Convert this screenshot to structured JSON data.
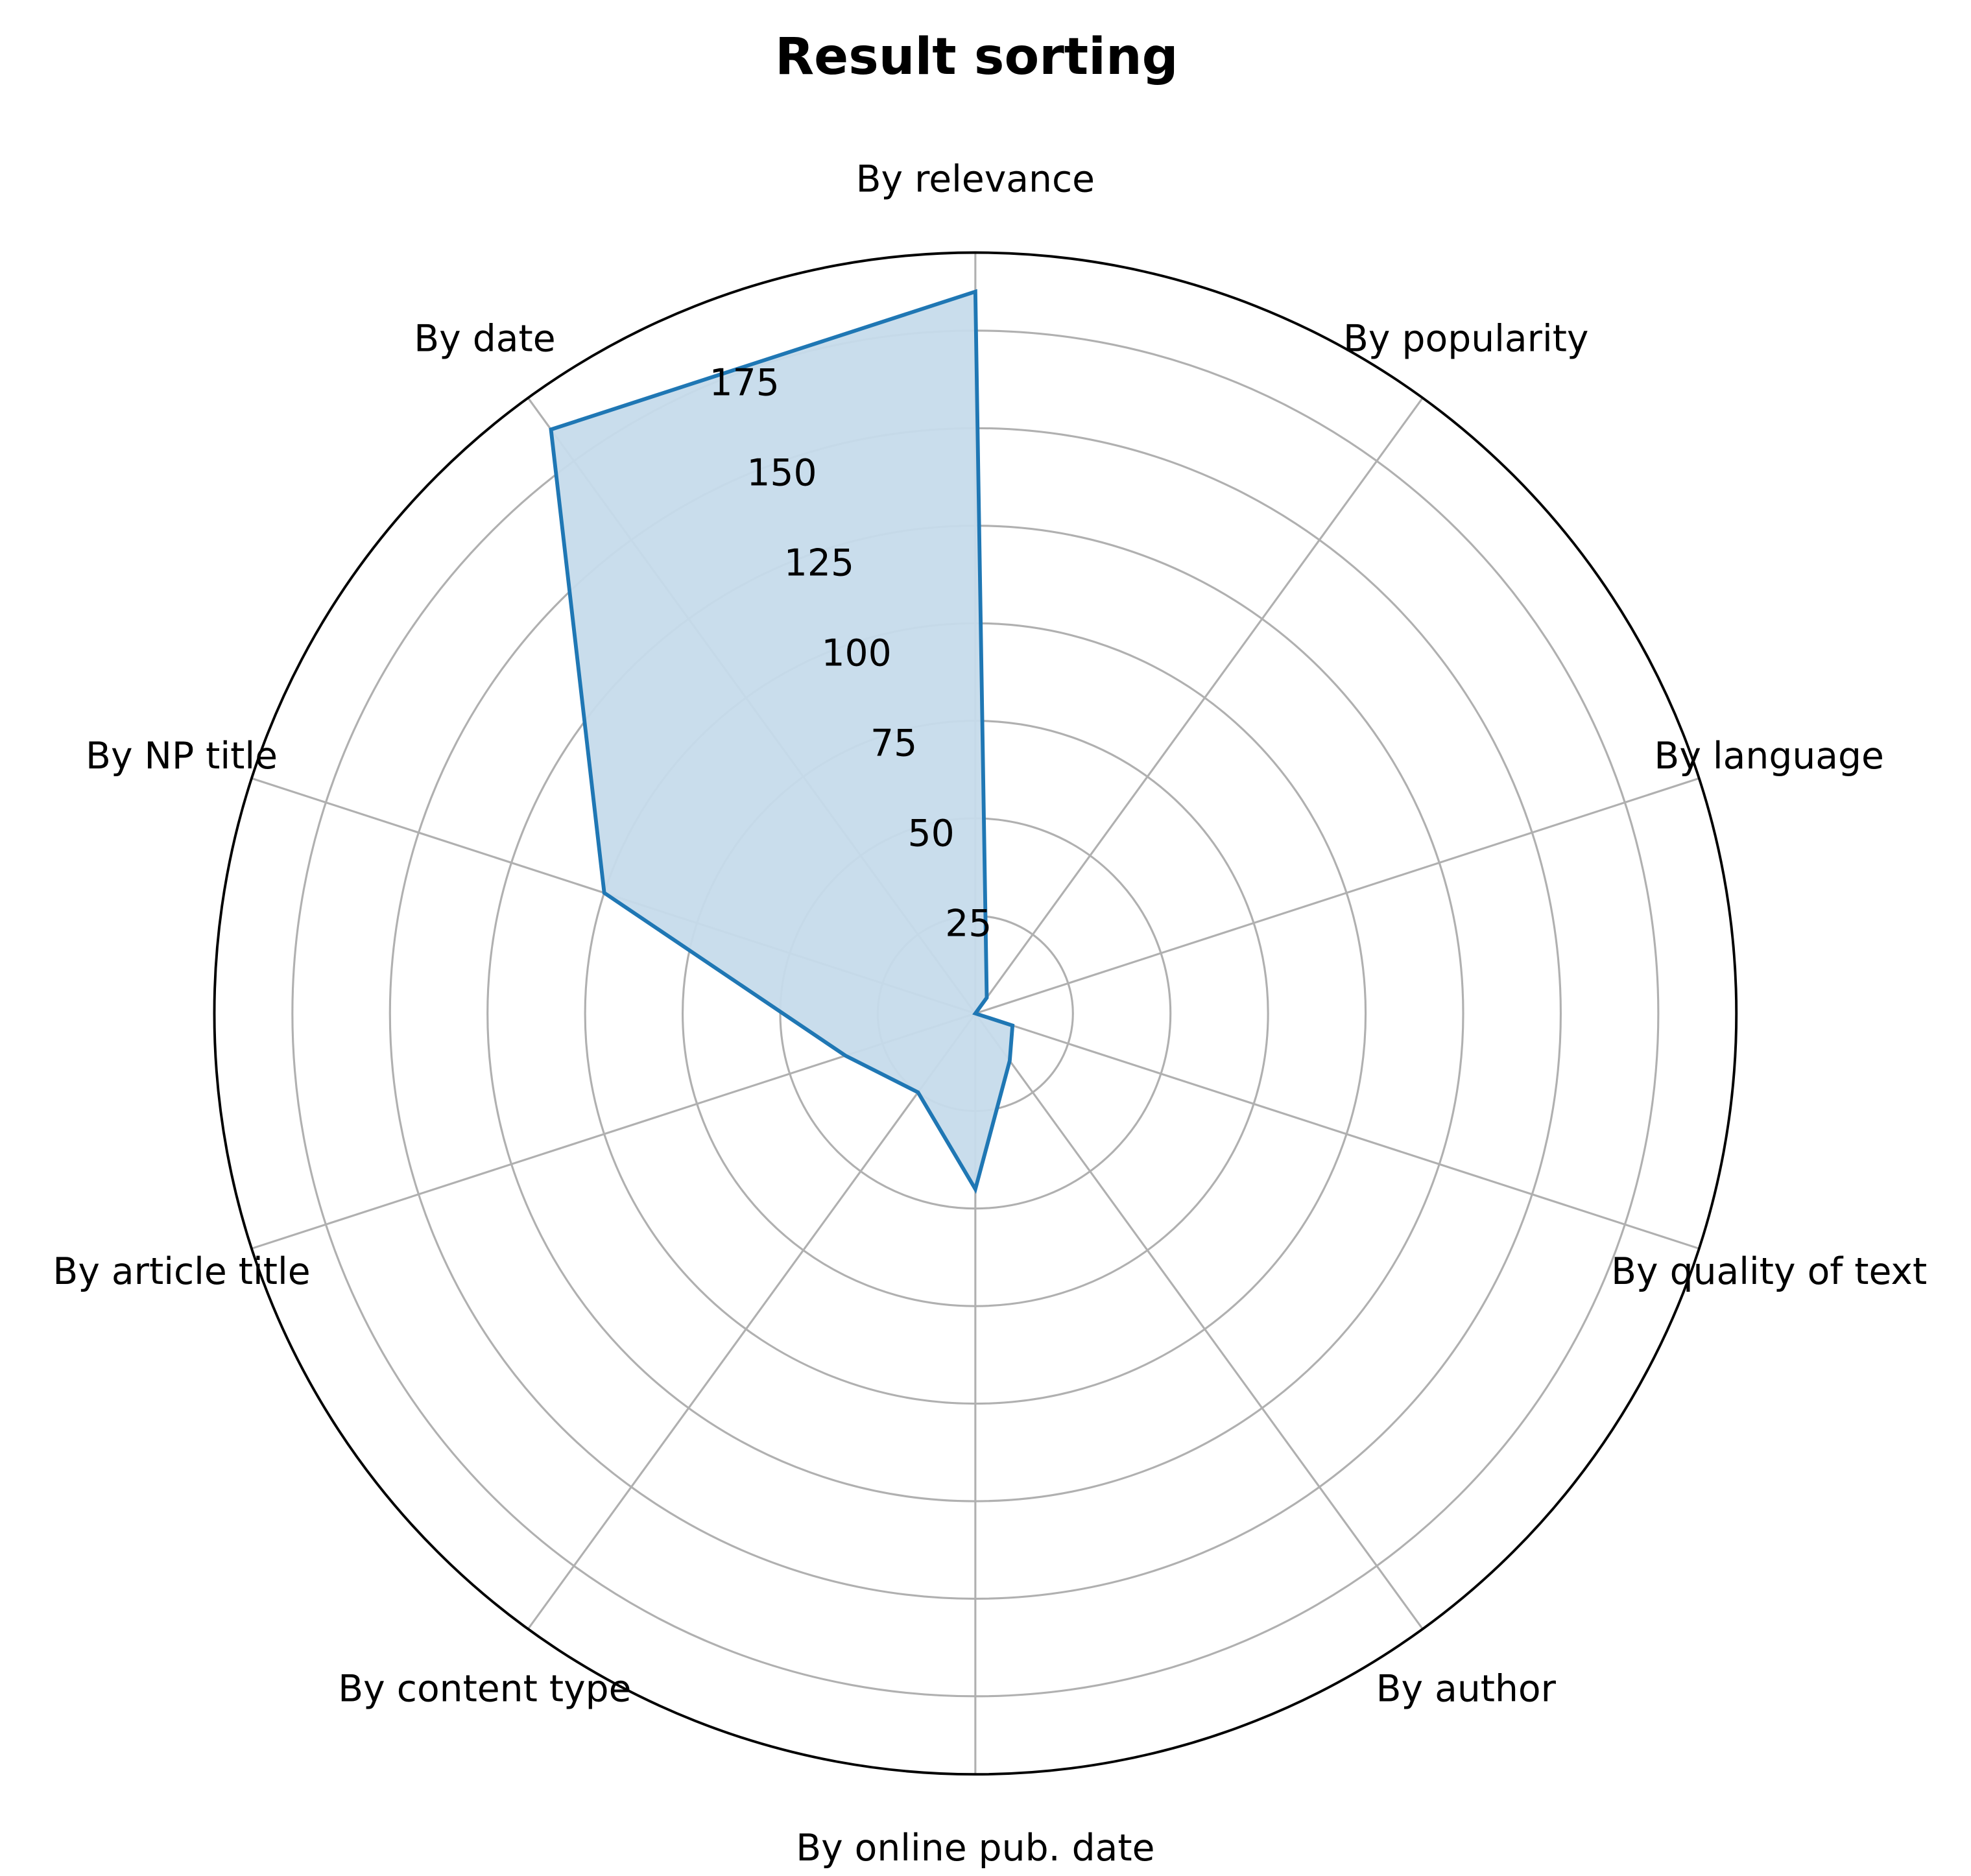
{
  "chart_data": {
    "type": "radar",
    "title": "Result sorting",
    "categories": [
      "By relevance",
      "By popularity",
      "By language",
      "By quality of text",
      "By author",
      "By online pub. date",
      "By content type",
      "By article title",
      "By NP title",
      "By date"
    ],
    "values": [
      185,
      5,
      0,
      10,
      15,
      45,
      25,
      35,
      100,
      185
    ],
    "rlim": [
      0,
      195
    ],
    "r_ticks": [
      25,
      50,
      75,
      100,
      125,
      150,
      175
    ],
    "grid": true,
    "colors": {
      "line": "#1f77b4",
      "fill": "#c6dbeb",
      "grid": "#b0b0b0",
      "frame": "#000000"
    }
  }
}
